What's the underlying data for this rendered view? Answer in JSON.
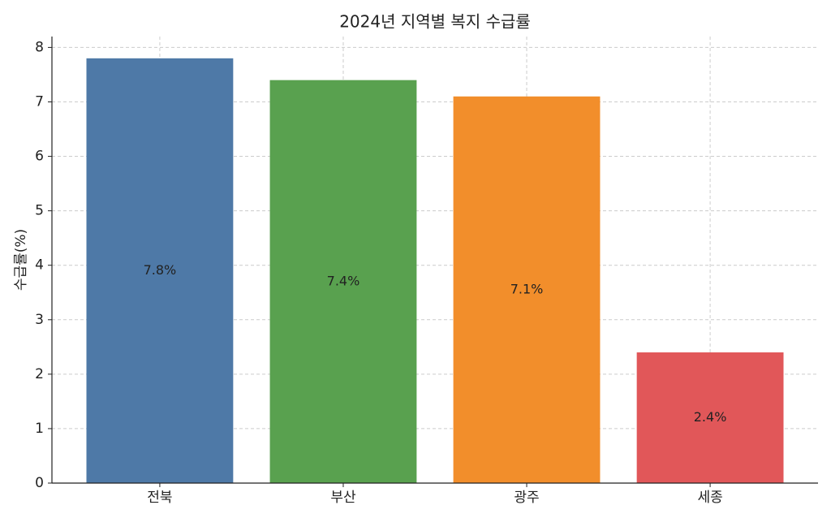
{
  "chart_data": {
    "type": "bar",
    "title": "2024년 지역별 복지 수급률",
    "y_label": "수급률(%)",
    "categories": [
      "전북",
      "부산",
      "광주",
      "세종"
    ],
    "values": [
      7.8,
      7.4,
      7.1,
      2.4
    ],
    "value_labels": [
      "7.8%",
      "7.4%",
      "7.1%",
      "2.4%"
    ],
    "colors": [
      "#4e79a7",
      "#59a14f",
      "#f28e2b",
      "#e15759"
    ],
    "ylim": [
      0,
      8.2
    ],
    "yticks": [
      0,
      1,
      2,
      3,
      4,
      5,
      6,
      7,
      8
    ],
    "grid": true
  }
}
